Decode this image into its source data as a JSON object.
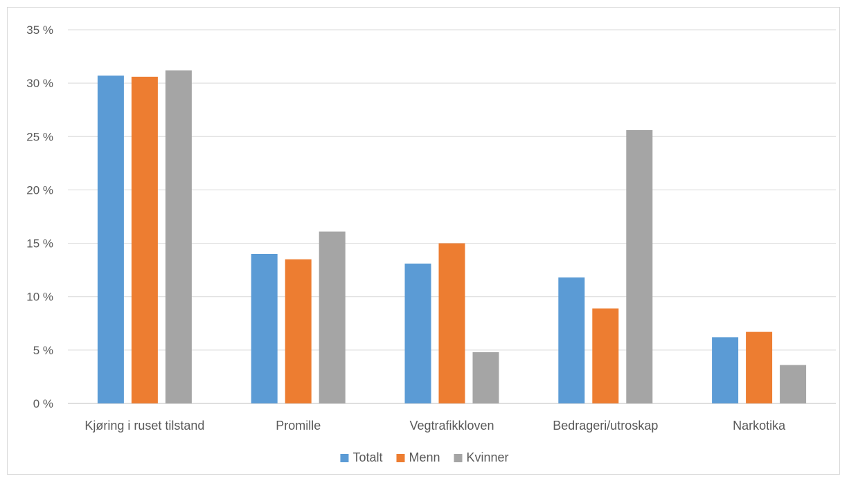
{
  "chart_data": {
    "type": "bar",
    "categories": [
      "Kjøring i ruset tilstand",
      "Promille",
      "Vegtrafikkloven",
      "Bedrageri/utroskap",
      "Narkotika"
    ],
    "series": [
      {
        "name": "Totalt",
        "color": "#5b9bd5",
        "values": [
          30.7,
          14.0,
          13.1,
          11.8,
          6.2
        ]
      },
      {
        "name": "Menn",
        "color": "#ed7d31",
        "values": [
          30.6,
          13.5,
          15.0,
          8.9,
          6.7
        ]
      },
      {
        "name": "Kvinner",
        "color": "#a5a5a5",
        "values": [
          31.2,
          16.1,
          4.8,
          25.6,
          3.6
        ]
      }
    ],
    "yticks": [
      "0 %",
      "5 %",
      "10 %",
      "15 %",
      "20 %",
      "25 %",
      "30 %",
      "35 %"
    ],
    "ylim": [
      0,
      35
    ],
    "grid": true,
    "legend_position": "bottom",
    "title": "",
    "xlabel": "",
    "ylabel": ""
  }
}
